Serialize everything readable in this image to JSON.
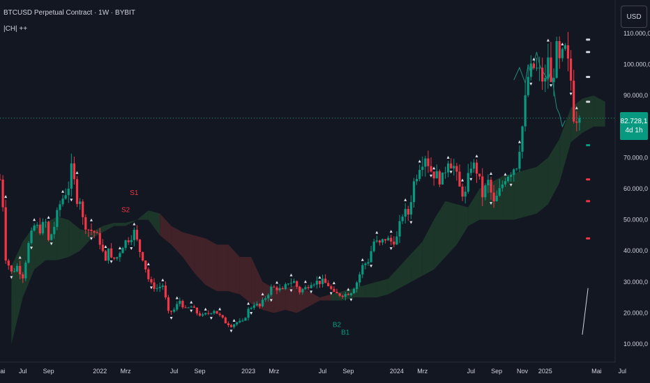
{
  "header": {
    "title": "BTCUSD Perpetual Contract · 1W · BYBIT",
    "indicator": "|CH| ++"
  },
  "currency_button": "USD",
  "price_label": {
    "value": "82.728,1",
    "countdown": "4d 1h"
  },
  "colors": {
    "background": "#131722",
    "up": "#089981",
    "down": "#f23645",
    "cloud_bull": "#1f3d2c",
    "cloud_bear": "#4a2529",
    "text": "#d1d4dc",
    "label_sell": "#f23645",
    "label_buy": "#089981",
    "lagging_line": "#22ab94"
  },
  "chart_data": {
    "type": "candlestick",
    "symbol": "BTCUSD Perpetual Contract",
    "interval": "1W",
    "exchange": "BYBIT",
    "y_axis": {
      "range": [
        10000,
        115000
      ],
      "ticks": [
        "110.000,0",
        "100.000,0",
        "90.000,0",
        "80.000,0",
        "70.000,0",
        "60.000,0",
        "50.000,0",
        "40.000,0",
        "30.000,0",
        "20.000,0",
        "10.000,0"
      ],
      "tick_values": [
        110000,
        100000,
        90000,
        80000,
        70000,
        60000,
        50000,
        40000,
        30000,
        20000,
        10000
      ]
    },
    "x_axis": {
      "labels": [
        "Mai",
        "Jul",
        "Sep",
        "2022",
        "Mrz",
        "Jul",
        "Sep",
        "2023",
        "Mrz",
        "Jul",
        "Sep",
        "2024",
        "Mrz",
        "Jul",
        "Sep",
        "Nov",
        "2025",
        "Mai",
        "Jul"
      ],
      "label_weeks": [
        0,
        8,
        17,
        35,
        44,
        61,
        70,
        87,
        96,
        113,
        122,
        139,
        148,
        165,
        174,
        183,
        191,
        209,
        218
      ]
    },
    "last_price": 82728.1,
    "price_path": [
      [
        0,
        63000
      ],
      [
        1,
        55000
      ],
      [
        2,
        38000
      ],
      [
        4,
        33000
      ],
      [
        6,
        35000
      ],
      [
        8,
        32000
      ],
      [
        10,
        42000
      ],
      [
        12,
        48000
      ],
      [
        14,
        47000
      ],
      [
        16,
        49000
      ],
      [
        17,
        43000
      ],
      [
        19,
        48000
      ],
      [
        21,
        55000
      ],
      [
        24,
        61000
      ],
      [
        25,
        66000
      ],
      [
        26,
        62000
      ],
      [
        27,
        57000
      ],
      [
        28,
        57000
      ],
      [
        29,
        50000
      ],
      [
        31,
        47000
      ],
      [
        33,
        46000
      ],
      [
        35,
        43000
      ],
      [
        37,
        36000
      ],
      [
        38,
        42000
      ],
      [
        39,
        37000
      ],
      [
        41,
        38000
      ],
      [
        43,
        42000
      ],
      [
        45,
        44000
      ],
      [
        47,
        46000
      ],
      [
        49,
        40000
      ],
      [
        50,
        38000
      ],
      [
        52,
        31000
      ],
      [
        53,
        29000
      ],
      [
        55,
        28000
      ],
      [
        57,
        29000
      ],
      [
        59,
        20000
      ],
      [
        61,
        21000
      ],
      [
        63,
        24000
      ],
      [
        65,
        21000
      ],
      [
        67,
        22000
      ],
      [
        69,
        20000
      ],
      [
        71,
        19000
      ],
      [
        73,
        20000
      ],
      [
        75,
        21000
      ],
      [
        77,
        19000
      ],
      [
        79,
        17000
      ],
      [
        81,
        16000
      ],
      [
        83,
        17000
      ],
      [
        85,
        17000
      ],
      [
        87,
        21000
      ],
      [
        89,
        23000
      ],
      [
        91,
        22000
      ],
      [
        93,
        25000
      ],
      [
        95,
        28000
      ],
      [
        97,
        28000
      ],
      [
        99,
        27000
      ],
      [
        101,
        30000
      ],
      [
        103,
        30000
      ],
      [
        105,
        27000
      ],
      [
        107,
        28000
      ],
      [
        109,
        30000
      ],
      [
        111,
        30000
      ],
      [
        113,
        30000
      ],
      [
        115,
        29000
      ],
      [
        117,
        26000
      ],
      [
        119,
        26000
      ],
      [
        121,
        26000
      ],
      [
        123,
        27000
      ],
      [
        125,
        30000
      ],
      [
        127,
        35000
      ],
      [
        129,
        37000
      ],
      [
        131,
        43000
      ],
      [
        133,
        42000
      ],
      [
        135,
        44000
      ],
      [
        137,
        43000
      ],
      [
        139,
        44000
      ],
      [
        141,
        52000
      ],
      [
        143,
        52000
      ],
      [
        145,
        62000
      ],
      [
        147,
        68000
      ],
      [
        149,
        71000
      ],
      [
        151,
        66000
      ],
      [
        153,
        64000
      ],
      [
        155,
        63000
      ],
      [
        157,
        70000
      ],
      [
        159,
        67000
      ],
      [
        161,
        60000
      ],
      [
        163,
        58000
      ],
      [
        165,
        68000
      ],
      [
        167,
        66000
      ],
      [
        169,
        58000
      ],
      [
        171,
        62000
      ],
      [
        173,
        55000
      ],
      [
        175,
        59000
      ],
      [
        177,
        64000
      ],
      [
        179,
        66000
      ],
      [
        181,
        68000
      ],
      [
        183,
        80000
      ],
      [
        185,
        96000
      ],
      [
        187,
        99000
      ],
      [
        189,
        97000
      ],
      [
        191,
        94000
      ],
      [
        192,
        103000
      ],
      [
        193,
        93000
      ],
      [
        195,
        104000
      ],
      [
        196,
        100000
      ],
      [
        198,
        104000
      ],
      [
        200,
        95000
      ],
      [
        201,
        84000
      ],
      [
        203,
        82728
      ]
    ],
    "cloud_path_upper": [
      [
        4,
        35000
      ],
      [
        8,
        43000
      ],
      [
        12,
        48000
      ],
      [
        16,
        49000
      ],
      [
        20,
        51000
      ],
      [
        24,
        50000
      ],
      [
        28,
        47000
      ],
      [
        32,
        46000
      ],
      [
        36,
        48000
      ],
      [
        40,
        49000
      ],
      [
        44,
        49000
      ],
      [
        48,
        50000
      ],
      [
        52,
        53000
      ],
      [
        56,
        52000
      ],
      [
        60,
        48000
      ],
      [
        64,
        46000
      ],
      [
        68,
        45000
      ],
      [
        72,
        44000
      ],
      [
        76,
        42000
      ],
      [
        80,
        42000
      ],
      [
        84,
        38000
      ],
      [
        88,
        38000
      ],
      [
        92,
        30000
      ],
      [
        96,
        28000
      ],
      [
        100,
        28000
      ],
      [
        104,
        29000
      ],
      [
        108,
        27000
      ],
      [
        112,
        25000
      ],
      [
        116,
        26000
      ],
      [
        120,
        27000
      ],
      [
        124,
        28000
      ],
      [
        128,
        29000
      ],
      [
        132,
        30000
      ],
      [
        136,
        31000
      ],
      [
        140,
        35000
      ],
      [
        144,
        39000
      ],
      [
        148,
        43000
      ],
      [
        152,
        50000
      ],
      [
        156,
        56000
      ],
      [
        160,
        55000
      ],
      [
        164,
        54000
      ],
      [
        168,
        60000
      ],
      [
        172,
        62000
      ],
      [
        176,
        64000
      ],
      [
        180,
        65000
      ],
      [
        184,
        66000
      ],
      [
        188,
        67000
      ],
      [
        192,
        70000
      ],
      [
        196,
        76000
      ],
      [
        200,
        86000
      ],
      [
        204,
        89000
      ],
      [
        208,
        90000
      ],
      [
        212,
        88000
      ]
    ],
    "cloud_path_lower": [
      [
        4,
        10000
      ],
      [
        8,
        25000
      ],
      [
        12,
        34000
      ],
      [
        16,
        37000
      ],
      [
        20,
        37000
      ],
      [
        24,
        38000
      ],
      [
        28,
        40000
      ],
      [
        32,
        44000
      ],
      [
        36,
        46000
      ],
      [
        40,
        48000
      ],
      [
        44,
        48000
      ],
      [
        48,
        50000
      ],
      [
        52,
        50000
      ],
      [
        56,
        45000
      ],
      [
        60,
        42000
      ],
      [
        64,
        38000
      ],
      [
        68,
        33000
      ],
      [
        72,
        29000
      ],
      [
        76,
        27000
      ],
      [
        80,
        27000
      ],
      [
        84,
        26000
      ],
      [
        88,
        23000
      ],
      [
        92,
        21000
      ],
      [
        96,
        20000
      ],
      [
        100,
        21000
      ],
      [
        104,
        20000
      ],
      [
        108,
        22000
      ],
      [
        112,
        24000
      ],
      [
        116,
        24000
      ],
      [
        120,
        24000
      ],
      [
        124,
        25000
      ],
      [
        128,
        25000
      ],
      [
        132,
        25000
      ],
      [
        136,
        26000
      ],
      [
        140,
        28000
      ],
      [
        144,
        30000
      ],
      [
        148,
        32000
      ],
      [
        152,
        34000
      ],
      [
        156,
        38000
      ],
      [
        160,
        42000
      ],
      [
        164,
        48000
      ],
      [
        168,
        50000
      ],
      [
        172,
        50000
      ],
      [
        176,
        50000
      ],
      [
        180,
        50000
      ],
      [
        184,
        51000
      ],
      [
        188,
        52000
      ],
      [
        192,
        55000
      ],
      [
        196,
        62000
      ],
      [
        200,
        75000
      ],
      [
        204,
        78000
      ],
      [
        208,
        80000
      ],
      [
        212,
        80000
      ]
    ],
    "lagging_span": [
      [
        180,
        95000
      ],
      [
        182,
        99000
      ],
      [
        184,
        94000
      ],
      [
        185,
        100000
      ],
      [
        186,
        97000
      ],
      [
        188,
        104000
      ],
      [
        189,
        100000
      ],
      [
        190,
        98000
      ],
      [
        192,
        95000
      ],
      [
        193,
        98000
      ],
      [
        194,
        92000
      ],
      [
        195,
        86000
      ],
      [
        196,
        84000
      ],
      [
        197,
        80000
      ],
      [
        198,
        82000
      ]
    ],
    "signal_labels": [
      {
        "text": "S1",
        "week": 47,
        "price": 58000,
        "kind": "sell"
      },
      {
        "text": "S2",
        "week": 44,
        "price": 52500,
        "kind": "sell"
      },
      {
        "text": "B2",
        "week": 118,
        "price": 15500,
        "kind": "buy"
      },
      {
        "text": "B1",
        "week": 121,
        "price": 13000,
        "kind": "buy"
      }
    ]
  }
}
